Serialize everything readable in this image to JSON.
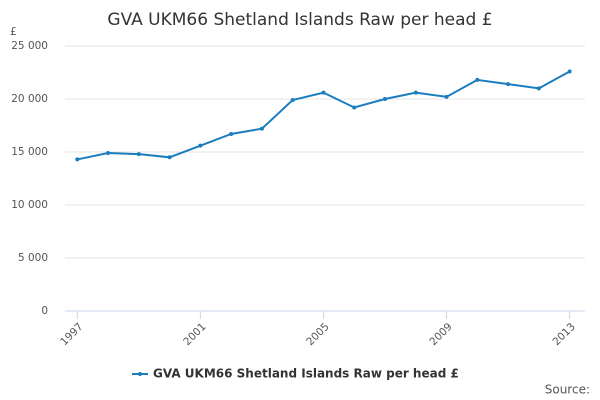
{
  "chart_data": {
    "type": "line",
    "title": "GVA UKM66 Shetland Islands Raw per head £",
    "y_label": "£",
    "source": "Source:",
    "x": [
      1997,
      1998,
      1999,
      2000,
      2001,
      2002,
      2003,
      2004,
      2005,
      2006,
      2007,
      2008,
      2009,
      2010,
      2011,
      2012,
      2013
    ],
    "series": [
      {
        "name": "GVA UKM66 Shetland Islands Raw per head £",
        "color": "#1a7dbd",
        "values": [
          14300,
          14900,
          14800,
          14500,
          15600,
          16700,
          17200,
          19900,
          20600,
          19200,
          20000,
          20600,
          20200,
          21800,
          21400,
          21000,
          22600
        ]
      }
    ],
    "xlim": [
      1996.6,
      2013.5
    ],
    "xticks": [
      1997,
      2001,
      2005,
      2009,
      2013
    ],
    "ylim": [
      0,
      25000
    ],
    "yticks": [
      0,
      {
        "value": 5000,
        "label": "5 000"
      },
      {
        "value": 10000,
        "label": "10 000"
      },
      {
        "value": 15000,
        "label": "15 000"
      },
      {
        "value": 20000,
        "label": "20 000"
      },
      {
        "value": 25000,
        "label": "25 000"
      }
    ],
    "grid": true
  }
}
